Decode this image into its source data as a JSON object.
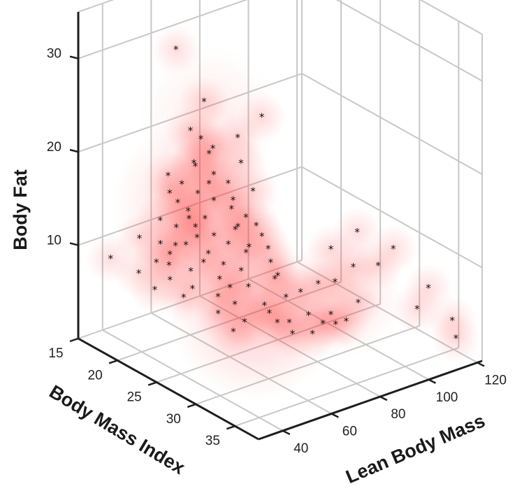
{
  "chart_data": {
    "type": "scatter",
    "title": "",
    "colors": {
      "density": "#ff2020",
      "points": "#111111",
      "grid": "#c8c8c8",
      "axes": "#1e1e1e"
    },
    "axes": {
      "x": {
        "label": "Body Mass Index",
        "range": [
          15,
          38
        ],
        "ticks": [
          15,
          20,
          25,
          30,
          35
        ]
      },
      "y": {
        "label": "Lean Body Mass",
        "range": [
          30,
          122
        ],
        "ticks": [
          40,
          60,
          80,
          100,
          120
        ]
      },
      "z": {
        "label": "Body Fat",
        "range": [
          0,
          35
        ],
        "ticks": [
          10,
          20,
          30
        ]
      }
    },
    "grid": true,
    "density_surface": true,
    "points": [
      [
        22.5,
        46,
        33
      ],
      [
        23.3,
        55,
        27
      ],
      [
        22.8,
        51,
        24
      ],
      [
        23.2,
        54,
        23
      ],
      [
        24.8,
        64,
        23
      ],
      [
        23.8,
        57,
        22
      ],
      [
        25.7,
        71,
        25
      ],
      [
        22.8,
        53,
        20
      ],
      [
        23.6,
        58,
        19
      ],
      [
        21.5,
        46,
        19
      ],
      [
        23.3,
        57,
        18
      ],
      [
        24.2,
        62,
        18
      ],
      [
        22.8,
        54,
        17
      ],
      [
        23.3,
        59,
        16
      ],
      [
        21.8,
        49,
        16
      ],
      [
        24.2,
        64,
        16
      ],
      [
        22.2,
        52,
        15
      ],
      [
        24.0,
        64,
        15
      ],
      [
        25.2,
        69,
        17
      ],
      [
        20.8,
        45,
        14
      ],
      [
        22.8,
        57,
        14
      ],
      [
        24.6,
        68,
        14
      ],
      [
        21.3,
        50,
        13
      ],
      [
        24.2,
        66,
        13
      ],
      [
        19.7,
        40,
        12
      ],
      [
        22.4,
        55,
        12
      ],
      [
        25.0,
        71,
        13
      ],
      [
        21.2,
        50,
        11
      ],
      [
        23.6,
        64,
        11
      ],
      [
        25.4,
        72,
        12
      ],
      [
        18.5,
        32,
        10
      ],
      [
        20.8,
        49,
        10
      ],
      [
        22.6,
        59,
        10
      ],
      [
        24.3,
        69,
        10
      ],
      [
        20.0,
        46,
        9
      ],
      [
        22.3,
        58,
        9
      ],
      [
        19.3,
        41,
        8
      ],
      [
        21.6,
        55,
        8
      ],
      [
        24.0,
        68,
        8
      ],
      [
        25.6,
        75,
        9
      ],
      [
        20.5,
        50,
        7
      ],
      [
        22.8,
        63,
        7
      ],
      [
        19.8,
        46,
        6
      ],
      [
        23.2,
        66,
        6
      ],
      [
        21.5,
        56,
        6
      ],
      [
        25.5,
        77,
        7
      ],
      [
        21.0,
        54,
        5
      ],
      [
        22.6,
        63,
        5
      ],
      [
        24.0,
        71,
        6
      ],
      [
        24.8,
        75,
        4
      ],
      [
        23.2,
        68,
        4
      ],
      [
        26.0,
        80,
        5
      ],
      [
        22.3,
        64,
        3
      ],
      [
        24.8,
        77,
        3
      ],
      [
        23.5,
        71,
        2
      ],
      [
        27.0,
        86,
        3
      ],
      [
        25.2,
        79,
        2
      ],
      [
        23.0,
        68,
        1
      ],
      [
        25.8,
        82,
        2
      ],
      [
        27.6,
        90,
        2
      ],
      [
        28.3,
        93,
        2
      ],
      [
        27.2,
        87,
        1
      ],
      [
        26.2,
        82,
        1
      ],
      [
        28.0,
        92,
        3
      ],
      [
        26.0,
        86,
        5
      ],
      [
        27.0,
        90,
        6
      ],
      [
        27.6,
        95,
        6
      ],
      [
        29.0,
        100,
        4
      ],
      [
        29.0,
        98,
        8
      ],
      [
        30.0,
        105,
        8
      ],
      [
        28.0,
        92,
        10
      ],
      [
        29.5,
        98,
        12
      ],
      [
        31.0,
        108,
        10
      ],
      [
        33.0,
        116,
        6
      ],
      [
        34.8,
        120,
        3
      ],
      [
        36.2,
        117,
        2
      ],
      [
        32.8,
        112,
        4
      ],
      [
        28.4,
        97,
        2
      ],
      [
        22.3,
        54,
        20
      ],
      [
        23.0,
        58,
        21
      ],
      [
        22.0,
        50,
        18
      ],
      [
        24.6,
        66,
        20
      ],
      [
        21.4,
        47,
        17
      ],
      [
        24.5,
        64,
        13
      ],
      [
        22.0,
        53,
        14
      ],
      [
        23.0,
        60,
        12
      ],
      [
        21.6,
        53,
        11
      ],
      [
        22.2,
        55,
        13
      ],
      [
        25.0,
        68,
        11
      ],
      [
        26.2,
        72,
        11
      ],
      [
        21.0,
        48,
        9
      ],
      [
        23.6,
        62,
        9
      ],
      [
        26.5,
        75,
        8
      ],
      [
        20.2,
        47,
        11
      ]
    ]
  }
}
